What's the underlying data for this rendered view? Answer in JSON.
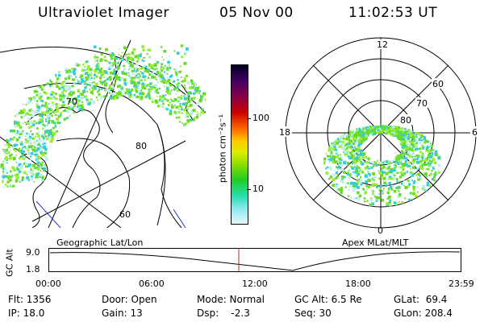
{
  "header": {
    "instrument": "Ultraviolet Imager",
    "date": "05 Nov 00",
    "time": "11:02:53 UT"
  },
  "colorbar": {
    "unit_label": "photon cm⁻²s⁻¹",
    "ticks": [
      "100",
      "10"
    ]
  },
  "geo_map": {
    "caption": "Geographic Lat/Lon",
    "labels": [
      "60",
      "70",
      "80"
    ]
  },
  "polar_plot": {
    "caption": "Apex MLat/MLT",
    "mlt_labels": {
      "top": "12",
      "left": "18",
      "right": "6",
      "bottom": "0"
    },
    "lat_labels": [
      "60",
      "70",
      "80"
    ]
  },
  "altitude_plot": {
    "ylabel": "GC Alt",
    "y_ticks": [
      "9.0",
      "1.8"
    ],
    "x_ticks": [
      "00:00",
      "06:00",
      "12:00",
      "18:00",
      "23:59"
    ],
    "marker_time": "11:02:53"
  },
  "info": {
    "flt": "Flt: 1356",
    "ip": "IP: 18.0",
    "door": "Door: Open",
    "gain": "Gain: 13",
    "mode": "Mode: Normal",
    "dsp": "Dsp:    -2.3",
    "gcalt": "GC Alt: 6.5 Re",
    "seq": "Seq: 30",
    "glat": "GLat:  69.4",
    "glon": "GLon: 208.4"
  },
  "colors": {
    "marker": "#cc2222",
    "aurora_green": "#66dd22",
    "aurora_cyan": "#33ccdd"
  }
}
